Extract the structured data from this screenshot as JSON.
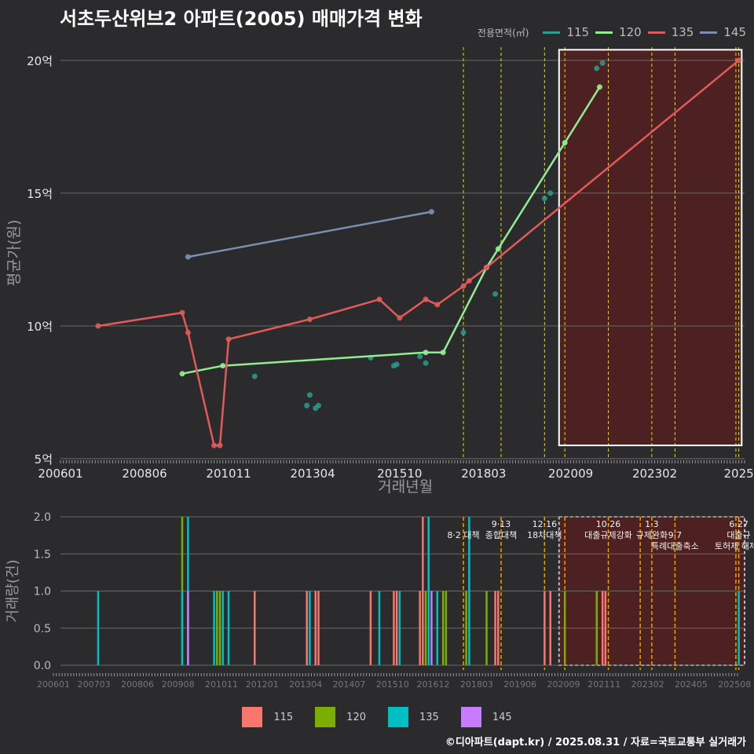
{
  "title": "서초두산위브2 아파트(2005) 매매가격 변화",
  "footer": "©디아파트(dapt.kr) / 2025.08.31 / 자료=국토교통부 실거래가",
  "legend_top_title": "전용면적(㎡)",
  "legend_bottom": [
    {
      "label": "115",
      "color": "#f8766d"
    },
    {
      "label": "120",
      "color": "#7cae00"
    },
    {
      "label": "135",
      "color": "#00bfc4"
    },
    {
      "label": "145",
      "color": "#c77cff"
    }
  ],
  "chart_data": [
    {
      "type": "line",
      "title": "서초두산위브2 아파트(2005) 매매가격 변화",
      "xlabel": "거래년월",
      "ylabel": "평균가(원)",
      "ylim": [
        5,
        20.5
      ],
      "xlim": [
        "2006-01",
        "2025-09"
      ],
      "yticks": [
        {
          "v": 5,
          "label": "5억"
        },
        {
          "v": 10,
          "label": "10억"
        },
        {
          "v": 15,
          "label": "15억"
        },
        {
          "v": 20,
          "label": "20억"
        }
      ],
      "xticks": [
        {
          "v": "2006-01",
          "label": "200601"
        },
        {
          "v": "2008-06",
          "label": "200806"
        },
        {
          "v": "2010-11",
          "label": "201011"
        },
        {
          "v": "2013-04",
          "label": "201304"
        },
        {
          "v": "2015-10",
          "label": "201510"
        },
        {
          "v": "2018-03",
          "label": "201803"
        },
        {
          "v": "2020-09",
          "label": "202009"
        },
        {
          "v": "2023-02",
          "label": "202302"
        },
        {
          "v": "2025-07",
          "label": "2025"
        }
      ],
      "policy_lines": [
        "2017-08",
        "2018-09",
        "2019-12",
        "2020-07",
        "2021-10",
        "2023-01",
        "2023-09",
        "2025-06",
        "2025-07"
      ],
      "shade_region": {
        "from": "2020-05",
        "to": "2025-08",
        "y_from": 5.5,
        "y_to": 20.4
      },
      "legend_title": "전용면적(㎡)",
      "series": [
        {
          "name": "115",
          "color": "#2a9d8f",
          "points": [
            [
              "2011-08",
              8.1
            ],
            [
              "2013-02",
              7.0
            ],
            [
              "2013-03",
              7.4
            ],
            [
              "2013-05",
              6.9
            ],
            [
              "2013-06",
              7.0
            ],
            [
              "2014-12",
              8.8
            ],
            [
              "2015-08",
              8.5
            ],
            [
              "2015-09",
              8.55
            ],
            [
              "2016-05",
              8.85
            ],
            [
              "2016-07",
              8.6
            ],
            [
              "2017-08",
              9.75
            ],
            [
              "2018-07",
              11.2
            ],
            [
              "2019-12",
              14.8
            ],
            [
              "2020-02",
              15.0
            ],
            [
              "2021-06",
              19.7
            ],
            [
              "2021-08",
              19.9
            ]
          ]
        },
        {
          "name": "120",
          "color": "#90ee90",
          "points": [
            [
              "2009-07",
              8.2
            ],
            [
              "2010-09",
              8.5
            ],
            [
              "2016-07",
              9.0
            ],
            [
              "2017-01",
              9.0
            ],
            [
              "2018-04",
              12.2
            ],
            [
              "2018-08",
              12.9
            ],
            [
              "2020-07",
              16.9
            ],
            [
              "2021-07",
              19.0
            ]
          ]
        },
        {
          "name": "135",
          "color": "#e05a5a",
          "points": [
            [
              "2007-02",
              10.0
            ],
            [
              "2009-07",
              10.5
            ],
            [
              "2009-09",
              9.75
            ],
            [
              "2010-06",
              5.5
            ],
            [
              "2010-08",
              5.5
            ],
            [
              "2010-11",
              9.5
            ],
            [
              "2013-03",
              10.25
            ],
            [
              "2015-03",
              11.0
            ],
            [
              "2015-10",
              10.3
            ],
            [
              "2016-07",
              11.0
            ],
            [
              "2016-11",
              10.8
            ],
            [
              "2017-08",
              11.5
            ],
            [
              "2017-10",
              11.7
            ],
            [
              "2018-04",
              12.2
            ],
            [
              "2025-07",
              20.0
            ]
          ]
        },
        {
          "name": "145",
          "color": "#7a8fb0",
          "points": [
            [
              "2009-09",
              12.6
            ],
            [
              "2016-09",
              14.3
            ]
          ]
        }
      ]
    },
    {
      "type": "bar",
      "xlabel": "",
      "ylabel": "거래량(건)",
      "ylim": [
        0,
        2
      ],
      "yticks": [
        {
          "v": 0,
          "label": "0.0"
        },
        {
          "v": 0.5,
          "label": "0.5"
        },
        {
          "v": 1,
          "label": "1.0"
        },
        {
          "v": 1.5,
          "label": "1.5"
        },
        {
          "v": 2,
          "label": "2.0"
        }
      ],
      "xticks": [
        {
          "v": "2006-01",
          "label": "200601"
        },
        {
          "v": "2007-03",
          "label": "200703"
        },
        {
          "v": "2008-06",
          "label": "200806"
        },
        {
          "v": "2009-08",
          "label": "200908"
        },
        {
          "v": "2010-11",
          "label": "201011"
        },
        {
          "v": "2012-01",
          "label": "201201"
        },
        {
          "v": "2013-04",
          "label": "201304"
        },
        {
          "v": "2014-07",
          "label": "201407"
        },
        {
          "v": "2015-10",
          "label": "201510"
        },
        {
          "v": "2016-12",
          "label": "201612"
        },
        {
          "v": "2018-03",
          "label": "201803"
        },
        {
          "v": "2019-06",
          "label": "201906"
        },
        {
          "v": "2020-09",
          "label": "202009"
        },
        {
          "v": "2021-11",
          "label": "202111"
        },
        {
          "v": "2023-02",
          "label": "202302"
        },
        {
          "v": "2024-05",
          "label": "202405"
        },
        {
          "v": "2025-08",
          "label": "202508"
        }
      ],
      "policy_lines": [
        "2017-08",
        "2018-09",
        "2019-12",
        "2020-07",
        "2021-10",
        "2022-09",
        "2023-01",
        "2023-09",
        "2025-06",
        "2025-07"
      ],
      "shade_region": {
        "from": "2020-05",
        "to": "2025-09"
      },
      "annotations": [
        {
          "x": "2017-08",
          "text": "8·2 대책",
          "row": 1
        },
        {
          "x": "2018-09",
          "text": "9·13",
          "row": 0
        },
        {
          "x": "2018-09",
          "text": "종합대책",
          "row": 1
        },
        {
          "x": "2019-12",
          "text": "12·16",
          "row": 0
        },
        {
          "x": "2019-12",
          "text": "18차대책",
          "row": 1
        },
        {
          "x": "2021-10",
          "text": "10·26",
          "row": 0
        },
        {
          "x": "2021-10",
          "text": "대출규제강화",
          "row": 1
        },
        {
          "x": "2023-01",
          "text": "1·3",
          "row": 0
        },
        {
          "x": "2023-01",
          "text": "규제완화",
          "row": 1
        },
        {
          "x": "2023-09",
          "text": "9·7",
          "row": 1
        },
        {
          "x": "2023-09",
          "text": "특례대출축소",
          "row": 2
        },
        {
          "x": "2025-06",
          "text": "토허제 해제",
          "row": 2
        },
        {
          "x": "2025-07",
          "text": "6·27",
          "row": 0
        },
        {
          "x": "2025-07",
          "text": "대출규",
          "row": 1
        }
      ],
      "bars": [
        {
          "x": "2007-02",
          "series": "135",
          "value": 1
        },
        {
          "x": "2009-07",
          "series": "120",
          "value": 2
        },
        {
          "x": "2009-07",
          "series": "135",
          "value": 1
        },
        {
          "x": "2009-09",
          "series": "135",
          "value": 2
        },
        {
          "x": "2009-09",
          "series": "145",
          "value": 1
        },
        {
          "x": "2010-06",
          "series": "135",
          "value": 1
        },
        {
          "x": "2010-07",
          "series": "120",
          "value": 1
        },
        {
          "x": "2010-08",
          "series": "120",
          "value": 1
        },
        {
          "x": "2010-09",
          "series": "135",
          "value": 1
        },
        {
          "x": "2010-11",
          "series": "135",
          "value": 1
        },
        {
          "x": "2011-08",
          "series": "115",
          "value": 1
        },
        {
          "x": "2013-02",
          "series": "115",
          "value": 1
        },
        {
          "x": "2013-03",
          "series": "135",
          "value": 1
        },
        {
          "x": "2013-05",
          "series": "115",
          "value": 1
        },
        {
          "x": "2013-06",
          "series": "115",
          "value": 1
        },
        {
          "x": "2014-12",
          "series": "115",
          "value": 1
        },
        {
          "x": "2015-03",
          "series": "135",
          "value": 1
        },
        {
          "x": "2015-08",
          "series": "115",
          "value": 1
        },
        {
          "x": "2015-09",
          "series": "115",
          "value": 1
        },
        {
          "x": "2015-10",
          "series": "135",
          "value": 1
        },
        {
          "x": "2016-05",
          "series": "115",
          "value": 1
        },
        {
          "x": "2016-06",
          "series": "115",
          "value": 2
        },
        {
          "x": "2016-07",
          "series": "120",
          "value": 1
        },
        {
          "x": "2016-08",
          "series": "135",
          "value": 2
        },
        {
          "x": "2016-09",
          "series": "145",
          "value": 1
        },
        {
          "x": "2016-11",
          "series": "135",
          "value": 1
        },
        {
          "x": "2017-01",
          "series": "120",
          "value": 1
        },
        {
          "x": "2017-02",
          "series": "120",
          "value": 1
        },
        {
          "x": "2017-09",
          "series": "120",
          "value": 1
        },
        {
          "x": "2017-10",
          "series": "135",
          "value": 2
        },
        {
          "x": "2018-04",
          "series": "120",
          "value": 1
        },
        {
          "x": "2018-07",
          "series": "115",
          "value": 1
        },
        {
          "x": "2018-08",
          "series": "115",
          "value": 1
        },
        {
          "x": "2019-12",
          "series": "115",
          "value": 1
        },
        {
          "x": "2020-02",
          "series": "115",
          "value": 1
        },
        {
          "x": "2020-07",
          "series": "120",
          "value": 1
        },
        {
          "x": "2021-06",
          "series": "120",
          "value": 1
        },
        {
          "x": "2021-08",
          "series": "115",
          "value": 1
        },
        {
          "x": "2021-09",
          "series": "115",
          "value": 1
        },
        {
          "x": "2025-07",
          "series": "135",
          "value": 1
        }
      ]
    }
  ]
}
